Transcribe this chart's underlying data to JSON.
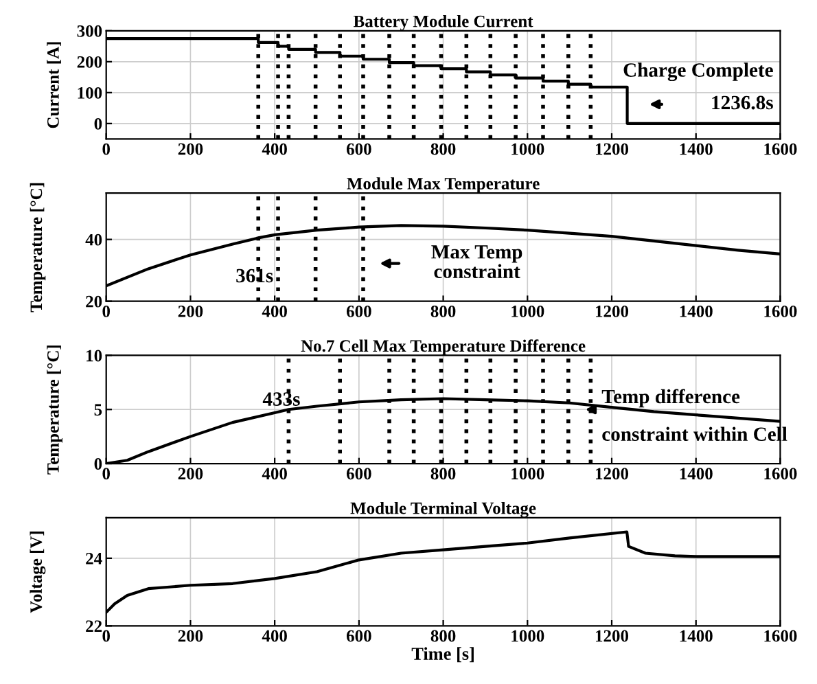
{
  "chart_data": [
    {
      "type": "step",
      "title": "Battery Module Current",
      "ylabel": "Current [A]",
      "xlim": [
        0,
        1600
      ],
      "xticks": [
        0,
        200,
        400,
        600,
        800,
        1000,
        1200,
        1400,
        1600
      ],
      "ylim": [
        -50,
        300
      ],
      "yticks": [
        0,
        100,
        200,
        300
      ],
      "grid": true,
      "x": [
        0,
        361,
        408,
        433,
        497,
        555,
        610,
        672,
        730,
        795,
        855,
        912,
        972,
        1037,
        1097,
        1150,
        1236.8,
        1600
      ],
      "series": [
        {
          "color": "#000000",
          "values": [
            275,
            262,
            250,
            240,
            230,
            218,
            208,
            197,
            187,
            177,
            167,
            157,
            147,
            137,
            127,
            118,
            0,
            0
          ]
        }
      ],
      "ref_lines": [
        {
          "axis": "x",
          "value": 361,
          "line_style": "dotted",
          "color": "#000000"
        },
        {
          "axis": "x",
          "value": 408,
          "line_style": "dotted",
          "color": "#000000"
        },
        {
          "axis": "x",
          "value": 433,
          "line_style": "dotted",
          "color": "#000000"
        },
        {
          "axis": "x",
          "value": 497,
          "line_style": "dotted",
          "color": "#000000"
        },
        {
          "axis": "x",
          "value": 555,
          "line_style": "dotted",
          "color": "#000000"
        },
        {
          "axis": "x",
          "value": 610,
          "line_style": "dotted",
          "color": "#000000"
        },
        {
          "axis": "x",
          "value": 672,
          "line_style": "dotted",
          "color": "#000000"
        },
        {
          "axis": "x",
          "value": 730,
          "line_style": "dotted",
          "color": "#000000"
        },
        {
          "axis": "x",
          "value": 795,
          "line_style": "dotted",
          "color": "#000000"
        },
        {
          "axis": "x",
          "value": 855,
          "line_style": "dotted",
          "color": "#000000"
        },
        {
          "axis": "x",
          "value": 912,
          "line_style": "dotted",
          "color": "#000000"
        },
        {
          "axis": "x",
          "value": 972,
          "line_style": "dotted",
          "color": "#000000"
        },
        {
          "axis": "x",
          "value": 1037,
          "line_style": "dotted",
          "color": "#000000"
        },
        {
          "axis": "x",
          "value": 1097,
          "line_style": "dotted",
          "color": "#000000"
        },
        {
          "axis": "x",
          "value": 1150,
          "line_style": "dotted",
          "color": "#000000"
        }
      ],
      "annotations": [
        "Charge Complete",
        "1236.8s"
      ]
    },
    {
      "type": "line",
      "title": "Module Max Temperature",
      "ylabel": "Temperature [°C]",
      "xlim": [
        0,
        1600
      ],
      "xticks": [
        0,
        200,
        400,
        600,
        800,
        1000,
        1200,
        1400,
        1600
      ],
      "ylim": [
        20,
        55
      ],
      "yticks": [
        20,
        40
      ],
      "grid": true,
      "x": [
        0,
        100,
        200,
        300,
        361,
        400,
        500,
        600,
        700,
        800,
        900,
        1000,
        1100,
        1200,
        1300,
        1400,
        1500,
        1600
      ],
      "series": [
        {
          "color": "#000000",
          "values": [
            25,
            30.5,
            35,
            38.5,
            40.5,
            41.5,
            43,
            44,
            44.5,
            44.3,
            43.7,
            43,
            42,
            41,
            39.5,
            38,
            36.5,
            35.3
          ]
        }
      ],
      "ref_lines": [
        {
          "axis": "x",
          "value": 361,
          "line_style": "dotted",
          "color": "#000000"
        },
        {
          "axis": "x",
          "value": 408,
          "line_style": "dotted",
          "color": "#000000"
        },
        {
          "axis": "x",
          "value": 497,
          "line_style": "dotted",
          "color": "#000000"
        },
        {
          "axis": "x",
          "value": 610,
          "line_style": "dotted",
          "color": "#000000"
        }
      ],
      "annotations": [
        "361s",
        "Max Temp\nconstraint"
      ]
    },
    {
      "type": "line",
      "title": "No.7 Cell Max Temperature Difference",
      "ylabel": "Temperature [°C]",
      "xlim": [
        0,
        1600
      ],
      "xticks": [
        0,
        200,
        400,
        600,
        800,
        1000,
        1200,
        1400,
        1600
      ],
      "ylim": [
        0,
        10
      ],
      "yticks": [
        0,
        5,
        10
      ],
      "grid": true,
      "x": [
        0,
        50,
        100,
        200,
        300,
        400,
        433,
        500,
        600,
        700,
        800,
        900,
        1000,
        1100,
        1200,
        1300,
        1400,
        1500,
        1600
      ],
      "series": [
        {
          "color": "#000000",
          "values": [
            0,
            0.3,
            1.1,
            2.5,
            3.8,
            4.7,
            5.0,
            5.3,
            5.7,
            5.9,
            6.0,
            5.9,
            5.8,
            5.6,
            5.2,
            4.8,
            4.5,
            4.2,
            3.9
          ]
        }
      ],
      "ref_lines": [
        {
          "axis": "x",
          "value": 433,
          "line_style": "dotted",
          "color": "#000000"
        },
        {
          "axis": "x",
          "value": 555,
          "line_style": "dotted",
          "color": "#000000"
        },
        {
          "axis": "x",
          "value": 672,
          "line_style": "dotted",
          "color": "#000000"
        },
        {
          "axis": "x",
          "value": 730,
          "line_style": "dotted",
          "color": "#000000"
        },
        {
          "axis": "x",
          "value": 795,
          "line_style": "dotted",
          "color": "#000000"
        },
        {
          "axis": "x",
          "value": 855,
          "line_style": "dotted",
          "color": "#000000"
        },
        {
          "axis": "x",
          "value": 912,
          "line_style": "dotted",
          "color": "#000000"
        },
        {
          "axis": "x",
          "value": 972,
          "line_style": "dotted",
          "color": "#000000"
        },
        {
          "axis": "x",
          "value": 1037,
          "line_style": "dotted",
          "color": "#000000"
        },
        {
          "axis": "x",
          "value": 1097,
          "line_style": "dotted",
          "color": "#000000"
        },
        {
          "axis": "x",
          "value": 1150,
          "line_style": "dotted",
          "color": "#000000"
        }
      ],
      "annotations": [
        "433s",
        "Temp difference\nconstraint within Cell"
      ]
    },
    {
      "type": "line",
      "title": "Module Terminal Voltage",
      "xlabel": "Time [s]",
      "ylabel": "Voltage [V]",
      "xlim": [
        0,
        1600
      ],
      "xticks": [
        0,
        200,
        400,
        600,
        800,
        1000,
        1200,
        1400,
        1600
      ],
      "ylim": [
        22,
        25.2
      ],
      "yticks": [
        22,
        24
      ],
      "grid": true,
      "x": [
        0,
        20,
        50,
        100,
        150,
        200,
        300,
        400,
        500,
        600,
        700,
        800,
        900,
        1000,
        1100,
        1236,
        1240,
        1280,
        1350,
        1400,
        1600
      ],
      "series": [
        {
          "color": "#000000",
          "values": [
            22.4,
            22.65,
            22.9,
            23.1,
            23.15,
            23.2,
            23.25,
            23.4,
            23.6,
            23.95,
            24.15,
            24.25,
            24.35,
            24.45,
            24.6,
            24.78,
            24.35,
            24.15,
            24.07,
            24.05,
            24.05
          ]
        }
      ]
    }
  ]
}
